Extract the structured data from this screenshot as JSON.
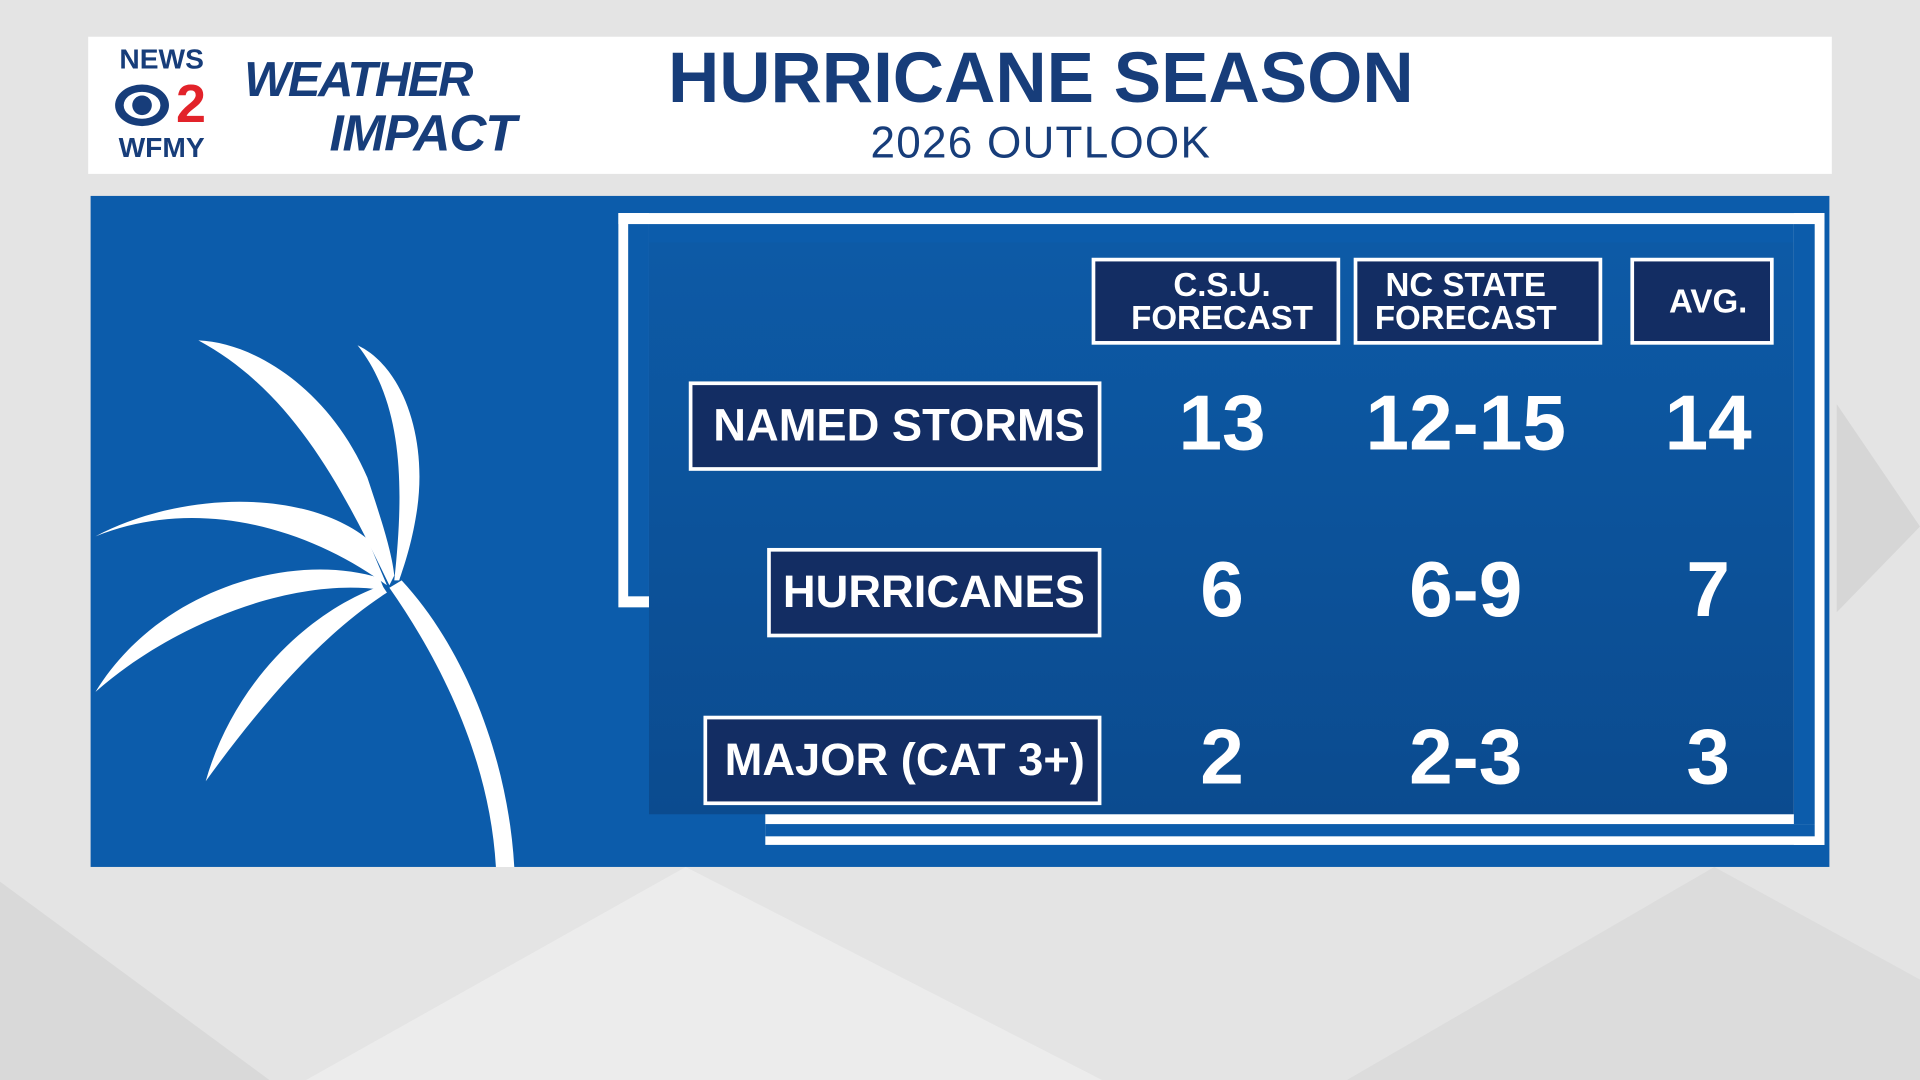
{
  "header": {
    "logo": {
      "news": "NEWS",
      "channel": "2",
      "station": "WFMY",
      "weather": "WEATHER",
      "impact": "IMPACT"
    },
    "title": "HURRICANE SEASON",
    "subtitle": "2026 OUTLOOK"
  },
  "table": {
    "columns": [
      "C.S.U.\nFORECAST",
      "NC STATE\nFORECAST",
      "AVG."
    ],
    "rows": [
      [
        "NAMED STORMS",
        13,
        "12-15",
        14
      ],
      [
        "HURRICANES",
        6,
        "6-9",
        7
      ],
      [
        "MAJOR (CAT 3+)",
        2,
        "2-3",
        3
      ]
    ]
  }
}
